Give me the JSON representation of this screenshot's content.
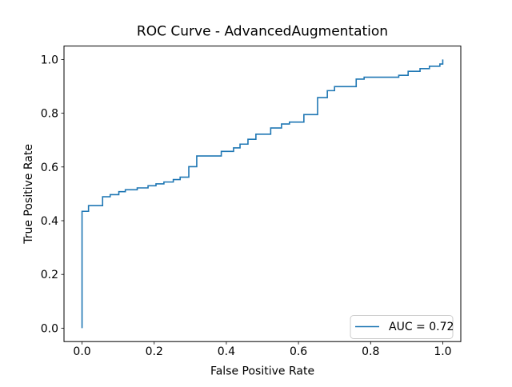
{
  "figure": {
    "background": "#ffffff"
  },
  "chart_data": {
    "type": "line",
    "subtype": "roc-step-curve",
    "title": "ROC Curve - AdvancedAugmentation",
    "xlabel": "False Positive Rate",
    "ylabel": "True Positive Rate",
    "xlim": [
      -0.05,
      1.05
    ],
    "ylim": [
      -0.05,
      1.05
    ],
    "grid": false,
    "x_ticks": [
      {
        "value": 0.0,
        "label": "0.0"
      },
      {
        "value": 0.2,
        "label": "0.2"
      },
      {
        "value": 0.4,
        "label": "0.4"
      },
      {
        "value": 0.6,
        "label": "0.6"
      },
      {
        "value": 0.8,
        "label": "0.8"
      },
      {
        "value": 1.0,
        "label": "1.0"
      }
    ],
    "y_ticks": [
      {
        "value": 0.0,
        "label": "0.0"
      },
      {
        "value": 0.2,
        "label": "0.2"
      },
      {
        "value": 0.4,
        "label": "0.4"
      },
      {
        "value": 0.6,
        "label": "0.6"
      },
      {
        "value": 0.8,
        "label": "0.8"
      },
      {
        "value": 1.0,
        "label": "1.0"
      }
    ],
    "legend": {
      "position": "lower right",
      "entries": [
        {
          "label": "AUC = 0.72",
          "color": "#1f77b4"
        }
      ]
    },
    "series": [
      {
        "name": "AUC = 0.72",
        "color": "#1f77b4",
        "step": true,
        "points": [
          [
            0.0,
            0.0
          ],
          [
            0.0,
            0.435
          ],
          [
            0.018,
            0.456
          ],
          [
            0.057,
            0.489
          ],
          [
            0.078,
            0.497
          ],
          [
            0.102,
            0.508
          ],
          [
            0.12,
            0.515
          ],
          [
            0.153,
            0.522
          ],
          [
            0.183,
            0.53
          ],
          [
            0.205,
            0.537
          ],
          [
            0.227,
            0.544
          ],
          [
            0.253,
            0.553
          ],
          [
            0.272,
            0.562
          ],
          [
            0.296,
            0.601
          ],
          [
            0.318,
            0.641
          ],
          [
            0.386,
            0.658
          ],
          [
            0.42,
            0.671
          ],
          [
            0.438,
            0.685
          ],
          [
            0.46,
            0.703
          ],
          [
            0.482,
            0.722
          ],
          [
            0.523,
            0.745
          ],
          [
            0.553,
            0.76
          ],
          [
            0.575,
            0.767
          ],
          [
            0.615,
            0.795
          ],
          [
            0.653,
            0.858
          ],
          [
            0.68,
            0.884
          ],
          [
            0.7,
            0.899
          ],
          [
            0.76,
            0.927
          ],
          [
            0.782,
            0.934
          ],
          [
            0.878,
            0.941
          ],
          [
            0.904,
            0.956
          ],
          [
            0.937,
            0.966
          ],
          [
            0.963,
            0.975
          ],
          [
            0.992,
            0.983
          ],
          [
            1.0,
            1.0
          ]
        ]
      }
    ]
  }
}
